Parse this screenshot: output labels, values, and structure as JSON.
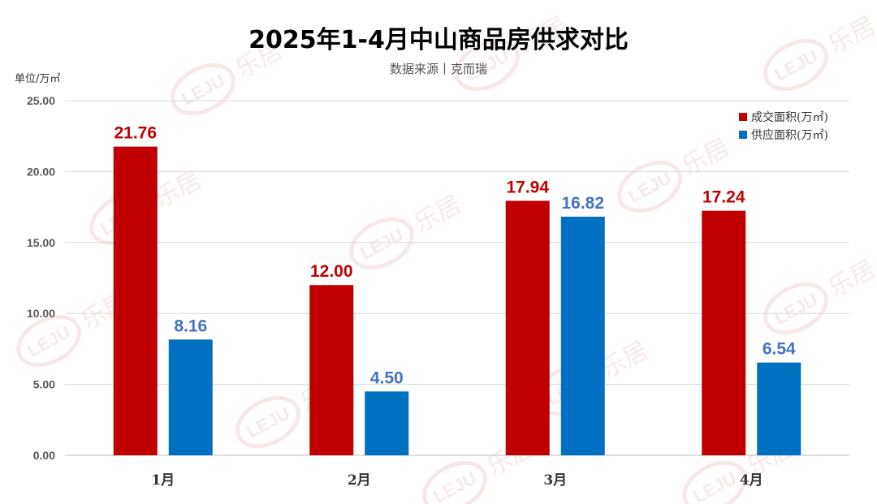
{
  "chart_data": {
    "type": "bar",
    "title": "2025年1-4月中山商品房供求对比",
    "subtitle": "数据来源丨克而瑞",
    "unit_label": "单位/万㎡",
    "categories": [
      "1月",
      "2月",
      "3月",
      "4月"
    ],
    "series": [
      {
        "name": "成交面积(万㎡)",
        "values": [
          21.76,
          12.0,
          17.94,
          17.24
        ],
        "color": "#c00000",
        "labels": [
          "21.76",
          "12.00",
          "17.94",
          "17.24"
        ]
      },
      {
        "name": "供应面积(万㎡)",
        "values": [
          8.16,
          4.5,
          16.82,
          6.54
        ],
        "color": "#0070c0",
        "labels": [
          "8.16",
          "4.50",
          "16.82",
          "6.54"
        ]
      }
    ],
    "ylim": [
      0,
      25
    ],
    "yticks": [
      "0.00",
      "5.00",
      "10.00",
      "15.00",
      "20.00",
      "25.00"
    ],
    "ytick_values": [
      0,
      5,
      10,
      15,
      20,
      25
    ],
    "grid": true,
    "legend_position": "top-right",
    "label_colors": [
      "#c00000",
      "#4472c4"
    ]
  },
  "watermark": {
    "text": "乐居",
    "logo_text": "LEJU",
    "color": "#f4d8d8"
  }
}
